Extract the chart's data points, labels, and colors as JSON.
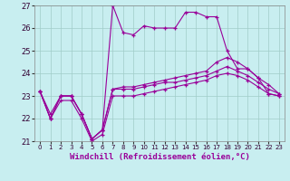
{
  "xlabel": "Windchill (Refroidissement éolien,°C)",
  "background_color": "#c8eef0",
  "grid_color": "#a0ccc8",
  "line_color": "#990099",
  "xlim": [
    -0.5,
    23.5
  ],
  "ylim": [
    21,
    27
  ],
  "yticks": [
    21,
    22,
    23,
    24,
    25,
    26,
    27
  ],
  "xticks": [
    0,
    1,
    2,
    3,
    4,
    5,
    6,
    7,
    8,
    9,
    10,
    11,
    12,
    13,
    14,
    15,
    16,
    17,
    18,
    19,
    20,
    21,
    22,
    23
  ],
  "series": [
    [
      23.2,
      22.2,
      23.0,
      23.0,
      22.2,
      21.1,
      21.5,
      27.0,
      25.8,
      25.7,
      26.1,
      26.0,
      26.0,
      26.0,
      26.7,
      26.7,
      26.5,
      26.5,
      25.0,
      24.2,
      24.2,
      23.8,
      23.1,
      23.0
    ],
    [
      23.2,
      22.0,
      23.0,
      23.0,
      22.2,
      21.1,
      21.5,
      23.3,
      23.4,
      23.4,
      23.5,
      23.6,
      23.7,
      23.8,
      23.9,
      24.0,
      24.1,
      24.5,
      24.7,
      24.5,
      24.2,
      23.8,
      23.5,
      23.1
    ],
    [
      23.2,
      22.0,
      23.0,
      23.0,
      22.2,
      21.1,
      21.5,
      23.3,
      23.3,
      23.3,
      23.4,
      23.5,
      23.6,
      23.6,
      23.7,
      23.8,
      23.9,
      24.1,
      24.3,
      24.1,
      23.9,
      23.6,
      23.3,
      23.1
    ],
    [
      23.2,
      22.0,
      22.8,
      22.8,
      22.0,
      21.0,
      21.3,
      23.0,
      23.0,
      23.0,
      23.1,
      23.2,
      23.3,
      23.4,
      23.5,
      23.6,
      23.7,
      23.9,
      24.0,
      23.9,
      23.7,
      23.4,
      23.1,
      23.0
    ]
  ]
}
